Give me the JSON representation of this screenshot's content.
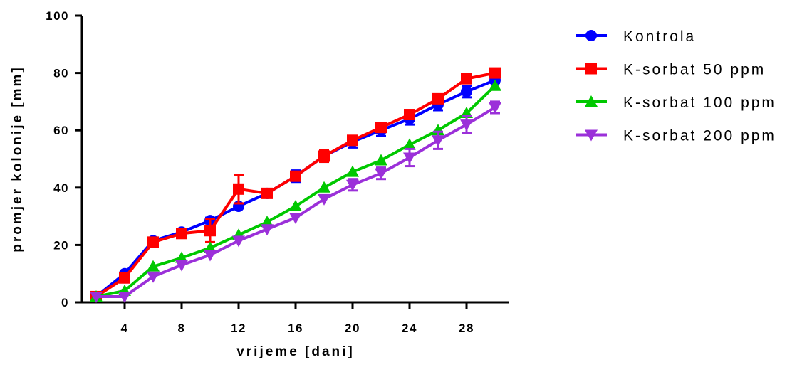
{
  "chart_data": {
    "type": "line",
    "xlabel": "vrijeme [dani]",
    "ylabel": "promjer kolonije [mm]",
    "xlim": [
      1,
      31
    ],
    "ylim": [
      0,
      100
    ],
    "x_ticks": [
      4,
      8,
      12,
      16,
      20,
      24,
      28
    ],
    "y_ticks": [
      0,
      20,
      40,
      60,
      80,
      100
    ],
    "grid": false,
    "legend_position": "right",
    "x": [
      2,
      4,
      6,
      8,
      10,
      12,
      14,
      16,
      18,
      20,
      22,
      24,
      26,
      28,
      30
    ],
    "series": [
      {
        "name": "Kontrola",
        "color": "#0000ff",
        "marker": "circle",
        "values": [
          2,
          10,
          21.5,
          24.5,
          28.5,
          33.5,
          38,
          44,
          51,
          56,
          60,
          64,
          69,
          73.5,
          77.5
        ],
        "error": [
          0,
          0,
          1,
          1,
          1,
          0,
          1,
          2,
          2,
          2,
          2,
          2,
          2,
          2,
          1
        ]
      },
      {
        "name": "K-sorbat 50 ppm",
        "color": "#ff0000",
        "marker": "square",
        "values": [
          2,
          8.5,
          21,
          24,
          25,
          39.5,
          38,
          44,
          51,
          56.5,
          61,
          65.5,
          71,
          78,
          80
        ],
        "error": [
          0,
          1,
          1,
          1,
          4,
          5,
          1,
          1.5,
          2,
          1.5,
          1.5,
          1.5,
          1.5,
          1.5,
          0.5
        ]
      },
      {
        "name": "K-sorbat 100 ppm",
        "color": "#00c800",
        "marker": "triangle-up",
        "values": [
          2,
          4,
          12.5,
          15.5,
          19,
          23.5,
          28,
          33.5,
          40,
          45.5,
          49.5,
          55,
          60,
          66,
          75.5
        ],
        "error": [
          0,
          0,
          0,
          0,
          0,
          0,
          0,
          0,
          0,
          0,
          0,
          0,
          0,
          0,
          0
        ]
      },
      {
        "name": "K-sorbat 200 ppm",
        "color": "#9b30d9",
        "marker": "triangle-down",
        "values": [
          2,
          2,
          9,
          13,
          16.5,
          21.5,
          25.5,
          29.5,
          36,
          41,
          45,
          50.5,
          56.5,
          62,
          68
        ],
        "error": [
          0,
          0,
          0,
          0,
          0,
          0,
          0,
          0,
          0,
          2,
          2,
          3,
          3,
          3,
          2
        ]
      }
    ]
  }
}
